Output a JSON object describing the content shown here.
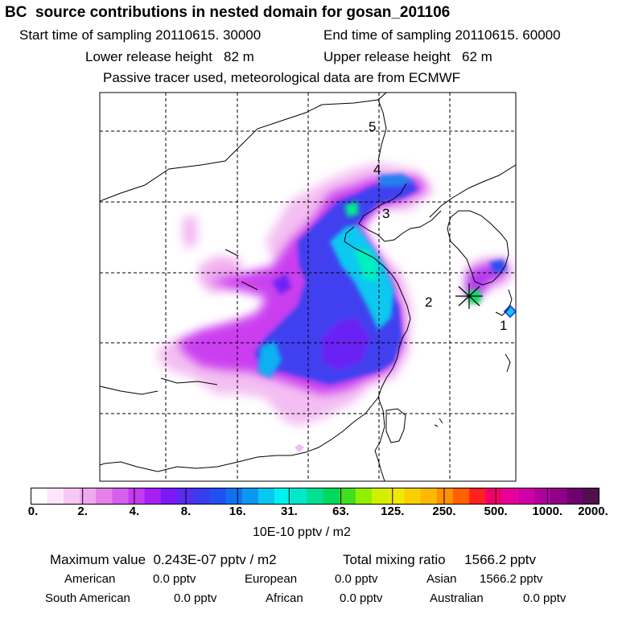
{
  "header": {
    "title": "BC  source contributions in nested domain for gosan_201106",
    "start_sampling": "Start time of sampling 20110615. 30000",
    "end_sampling": "End time of sampling 20110615. 60000",
    "lower_release": "Lower release height   82 m",
    "upper_release": "Upper release height   62 m",
    "tracer_note": "Passive tracer used, meteorological data are from ECMWF"
  },
  "map": {
    "trajectory_labels": [
      "1",
      "2",
      "3",
      "4",
      "5"
    ],
    "receptor_marker": "star-icon"
  },
  "colorbar": {
    "colors": [
      "#ffffff",
      "#fde6fb",
      "#f8c8f4",
      "#f0a8ee",
      "#e680ea",
      "#d75ff0",
      "#c33cf2",
      "#a620f4",
      "#7c18f4",
      "#5a2cf0",
      "#3a3cf0",
      "#2050f0",
      "#1070f0",
      "#0a98f0",
      "#08c8f0",
      "#00f0f0",
      "#00e8c8",
      "#00e090",
      "#00d860",
      "#40e020",
      "#90f000",
      "#d0f000",
      "#f0e800",
      "#f8d000",
      "#ffb800",
      "#ff9000",
      "#ff6000",
      "#ff2020",
      "#f0006a",
      "#e8009a",
      "#d000a8",
      "#b0009c",
      "#900088",
      "#700070",
      "#501050"
    ],
    "tick_labels": [
      "0.",
      "2.",
      "4.",
      "8.",
      "16.",
      "31.",
      "63.",
      "125.",
      "250.",
      "500.",
      "1000.",
      "2000."
    ],
    "units": "10E-10 pptv / m2"
  },
  "summary": {
    "max_value": "Maximum value  0.243E-07 pptv / m2",
    "total_mixing_ratio": "Total mixing ratio     1566.2 pptv"
  },
  "regions": [
    {
      "name": "American",
      "value": "0.0 pptv"
    },
    {
      "name": "European",
      "value": "0.0 pptv"
    },
    {
      "name": "Asian",
      "value": "1566.2 pptv"
    },
    {
      "name": "South American",
      "value": "0.0 pptv"
    },
    {
      "name": "African",
      "value": "0.0 pptv"
    },
    {
      "name": "Australian",
      "value": "0.0 pptv"
    }
  ]
}
